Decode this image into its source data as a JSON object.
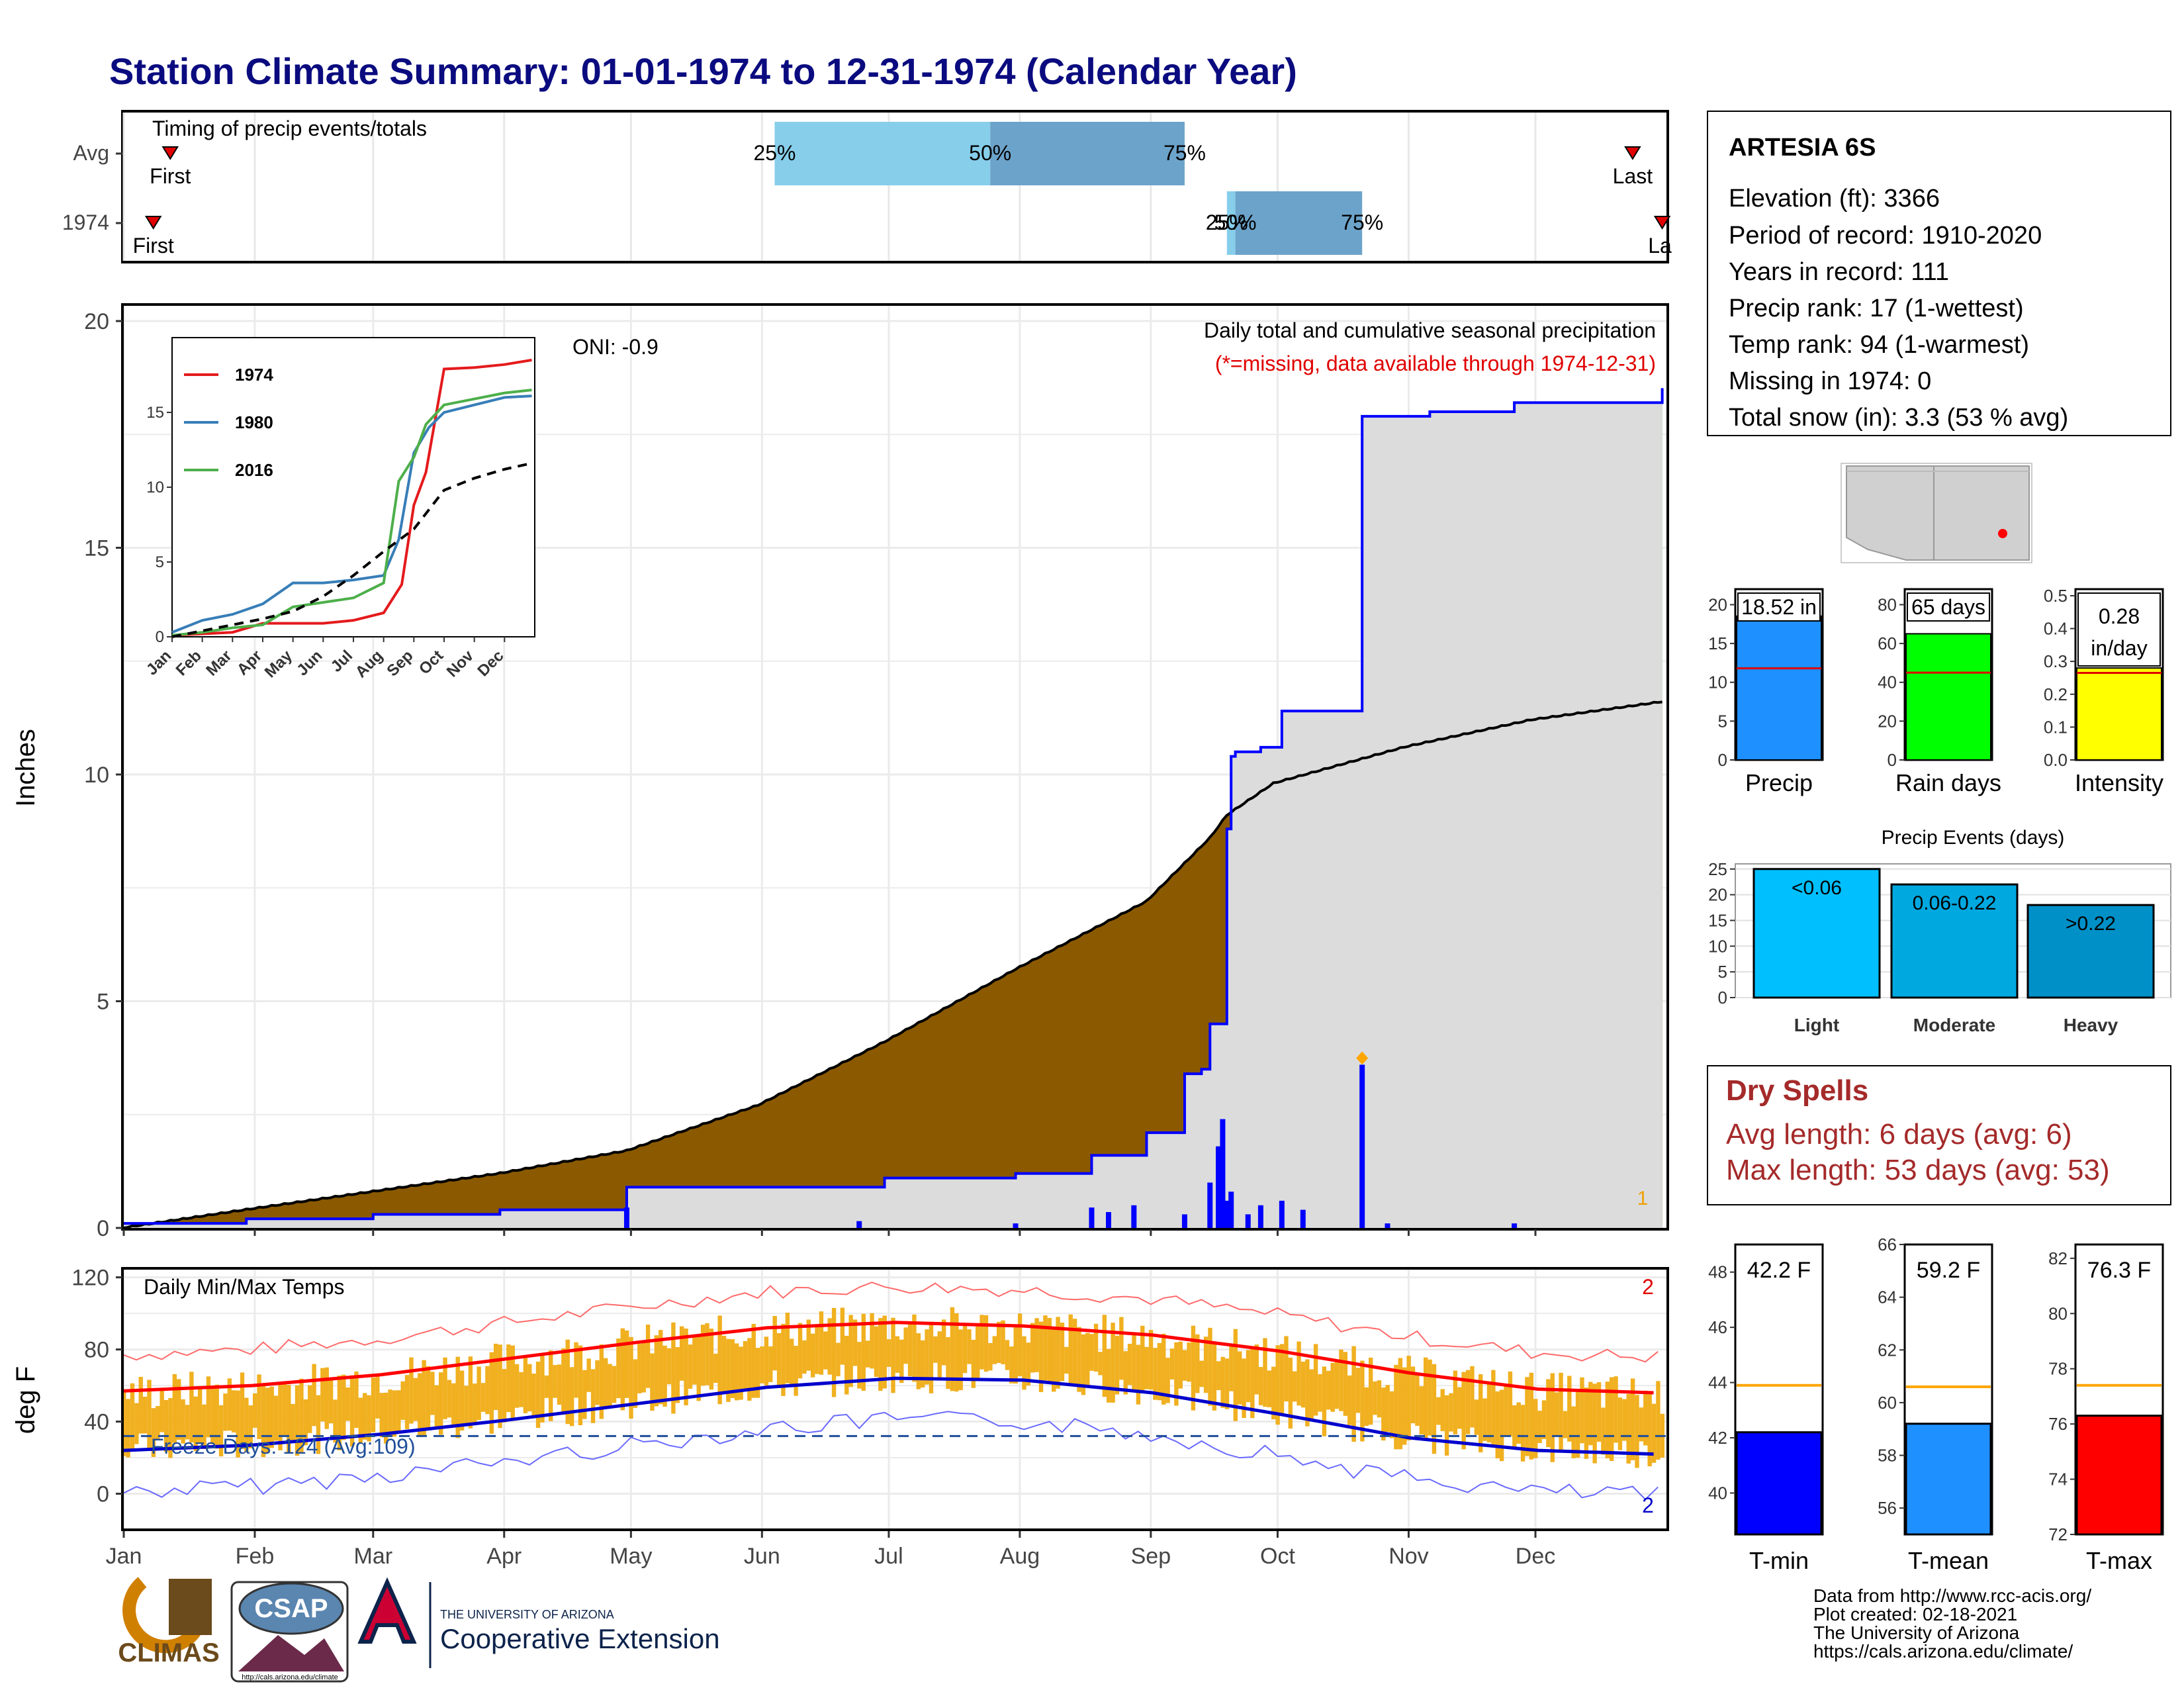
{
  "title": "Station Climate Summary: 01-01-1974 to 12-31-1974 (Calendar Year)",
  "colors": {
    "title": "#0b0b80",
    "cum_1974": "#8b5a00",
    "cum_avg_fill": "#dcdcdc",
    "excess": "#008000",
    "daily_bars": "#0000ff",
    "tmax_range": "#ffa500",
    "avg_tmax": "#ff0000",
    "avg_tmin": "#0000cd",
    "freeze_line": "#1f4e9a",
    "dry_spell_text": "#a52a2a"
  },
  "timing": {
    "title": "Timing of precip events/totals",
    "rows": [
      {
        "label": "Avg",
        "first_label": "First",
        "last_label": "Last",
        "first_day": 12,
        "last_day": 358,
        "p25_label": "25%",
        "p50_label": "50%",
        "p75_label": "75%",
        "p25": 155,
        "p50": 206,
        "p75": 252
      },
      {
        "label": "1974",
        "first_label": "First",
        "last_label": "La",
        "first_day": 8,
        "last_day": 365,
        "p25_label": "25%",
        "p50_label": "50%",
        "p75_label": "75%",
        "p25": 262,
        "p50": 264,
        "p75": 294
      }
    ]
  },
  "months": [
    "Jan",
    "Feb",
    "Mar",
    "Apr",
    "May",
    "Jun",
    "Jul",
    "Aug",
    "Sep",
    "Oct",
    "Nov",
    "Dec"
  ],
  "precip_panel": {
    "ylabel": "Inches",
    "yticks": [
      "0",
      "5",
      "10",
      "15",
      "20"
    ],
    "oni": "ONI: -0.9",
    "header": "Daily total and cumulative seasonal precipitation",
    "subheader": "(*=missing, data available through 1974-12-31)",
    "corner_label": "1"
  },
  "inset": {
    "yticks": [
      "0",
      "5",
      "10",
      "15"
    ],
    "months": [
      "Jan",
      "Feb",
      "Mar",
      "Apr",
      "May",
      "Jun",
      "Jul",
      "Aug",
      "Sep",
      "Oct",
      "Nov",
      "Dec"
    ],
    "legend": [
      "1974",
      "1980",
      "2016"
    ]
  },
  "temp_panel": {
    "ylabel": "deg F",
    "title": "Daily Min/Max Temps",
    "freeze": "Freeze Days: 124 (Avg:109)",
    "yticks": [
      "0",
      "40",
      "80",
      "120"
    ],
    "count_high": "2",
    "count_low": "2"
  },
  "station": {
    "name": "ARTESIA 6S",
    "lines": [
      "Elevation (ft): 3366",
      "Period of record: 1910-2020",
      "Years in record: 111",
      "Precip rank: 17 (1-wettest)",
      "Temp rank: 94 (1-warmest)",
      "Missing in 1974: 0",
      "Total snow (in): 3.3 (53 % avg)"
    ]
  },
  "summary_bars": [
    {
      "label": "Precip",
      "value_label": "18.52 in",
      "value": 18.52,
      "avg": 11.8,
      "ymax": 22,
      "ticks": [
        "0",
        "5",
        "10",
        "15",
        "20"
      ],
      "color": "#1e90ff"
    },
    {
      "label": "Rain days",
      "value_label": "65 days",
      "value": 65,
      "avg": 45,
      "ymax": 88,
      "ticks": [
        "0",
        "20",
        "40",
        "60",
        "80"
      ],
      "color": "#00ff00"
    },
    {
      "label": "Intensity",
      "value_label_1": "0.28",
      "value_label_2": "in/day",
      "value": 0.28,
      "avg": 0.265,
      "ymax": 0.52,
      "ticks": [
        "0.0",
        "0.1",
        "0.2",
        "0.3",
        "0.4",
        "0.5"
      ],
      "color": "#ffff00"
    }
  ],
  "precip_events": {
    "title": "Precip Events (days)",
    "ticks": [
      "0",
      "5",
      "10",
      "15",
      "20",
      "25"
    ],
    "ymax": 26,
    "bars": [
      {
        "label": "Light",
        "bin": "<0.06",
        "value": 25,
        "color": "#00bfff"
      },
      {
        "label": "Moderate",
        "bin": "0.06-0.22",
        "value": 22,
        "color": "#00a8e0"
      },
      {
        "label": "Heavy",
        "bin": ">0.22",
        "value": 18,
        "color": "#0090c8"
      }
    ]
  },
  "dry_spells": {
    "title": "Dry Spells",
    "avg": "Avg length: 6 days (avg: 6)",
    "max": "Max length: 53 days (avg: 53)"
  },
  "temp_bars": [
    {
      "label": "T-min",
      "value_label": "42.2 F",
      "value": 42.2,
      "avg": 43.9,
      "ymin": 38.5,
      "ymax": 49,
      "ticks": [
        "40",
        "42",
        "44",
        "46",
        "48"
      ],
      "color": "#0000ff"
    },
    {
      "label": "T-mean",
      "value_label": "59.2 F",
      "value": 59.2,
      "avg": 60.6,
      "ymin": 55,
      "ymax": 66,
      "ticks": [
        "56",
        "58",
        "60",
        "62",
        "64",
        "66"
      ],
      "color": "#1e90ff"
    },
    {
      "label": "T-max",
      "value_label": "76.3 F",
      "value": 76.3,
      "avg": 77.4,
      "ymin": 72,
      "ymax": 82.5,
      "ticks": [
        "72",
        "74",
        "76",
        "78",
        "80",
        "82"
      ],
      "color": "#ff0000"
    }
  ],
  "footer": {
    "lines": [
      "Data from http://www.rcc-acis.org/",
      "Plot created: 02-18-2021",
      "The University of Arizona",
      "https://cals.arizona.edu/climate/"
    ],
    "logo1": "CLIMAS",
    "logo2": "CSAP",
    "logo2_url": "http://cals.arizona.edu/climate",
    "logo3_top": "THE UNIVERSITY OF ARIZONA",
    "logo3_main": "Cooperative Extension"
  },
  "chart_data": [
    {
      "type": "area",
      "title": "Daily total and cumulative seasonal precipitation",
      "ylabel": "Inches",
      "ylim": [
        0,
        20
      ],
      "x_unit": "day of year",
      "series": [
        {
          "name": "1974",
          "x": [
            1,
            30,
            60,
            90,
            120,
            151,
            170,
            181,
            200,
            212,
            230,
            243,
            252,
            256,
            258,
            262,
            263,
            264,
            270,
            275,
            290,
            294,
            296,
            310,
            330,
            365
          ],
          "values": [
            0.1,
            0.2,
            0.3,
            0.4,
            0.9,
            0.9,
            0.9,
            1.1,
            1.1,
            1.2,
            1.6,
            2.1,
            3.4,
            3.5,
            4.5,
            8.8,
            10.4,
            10.5,
            10.6,
            11.4,
            11.4,
            17.9,
            17.9,
            18.0,
            18.2,
            18.52
          ]
        },
        {
          "x": [
            1,
            30,
            60,
            90,
            120,
            151,
            181,
            212,
            243,
            258,
            262,
            273,
            304,
            334,
            365
          ],
          "values": [
            0.0,
            0.4,
            0.8,
            1.2,
            1.7,
            2.7,
            4.1,
            5.7,
            7.2,
            8.6,
            9.1,
            9.8,
            10.6,
            11.2,
            11.6
          ]
        }
      ],
      "daily_precip": [
        {
          "day": 120,
          "value": 0.45
        },
        {
          "day": 175,
          "value": 0.15
        },
        {
          "day": 212,
          "value": 0.1
        },
        {
          "day": 230,
          "value": 0.45
        },
        {
          "day": 234,
          "value": 0.35
        },
        {
          "day": 240,
          "value": 0.5
        },
        {
          "day": 252,
          "value": 0.3
        },
        {
          "day": 258,
          "value": 1.0
        },
        {
          "day": 260,
          "value": 1.8
        },
        {
          "day": 261,
          "value": 2.4
        },
        {
          "day": 262,
          "value": 0.6
        },
        {
          "day": 263,
          "value": 0.8
        },
        {
          "day": 267,
          "value": 0.3
        },
        {
          "day": 270,
          "value": 0.5
        },
        {
          "day": 275,
          "value": 0.6
        },
        {
          "day": 280,
          "value": 0.4
        },
        {
          "day": 294,
          "value": 3.6
        },
        {
          "day": 300,
          "value": 0.1
        },
        {
          "day": 330,
          "value": 0.1
        }
      ]
    },
    {
      "type": "line",
      "title": "",
      "x_unit": "month",
      "ylim": [
        0,
        20
      ],
      "series": [
        {
          "name": "1974",
          "x": [
            1,
            2,
            3,
            4,
            5,
            6,
            7,
            8,
            8.6,
            9,
            9.4,
            10,
            11,
            12,
            12.9
          ],
          "values": [
            0.1,
            0.2,
            0.3,
            0.9,
            0.9,
            0.9,
            1.1,
            1.6,
            3.5,
            8.8,
            11.0,
            17.9,
            18.0,
            18.2,
            18.5
          ]
        },
        {
          "name": "1980",
          "x": [
            1,
            2,
            3,
            4,
            5,
            6,
            7,
            8,
            8.5,
            9,
            9.5,
            10,
            11,
            12,
            12.9
          ],
          "values": [
            0.3,
            1.1,
            1.5,
            2.2,
            3.6,
            3.6,
            3.8,
            4.1,
            6.5,
            12.3,
            14.0,
            15.0,
            15.5,
            16.0,
            16.1
          ]
        },
        {
          "name": "2016",
          "x": [
            1,
            2,
            3,
            4,
            5,
            6,
            7,
            8,
            8.5,
            9,
            9.4,
            10,
            11,
            12,
            12.9
          ],
          "values": [
            0.1,
            0.3,
            0.6,
            0.8,
            2.0,
            2.3,
            2.6,
            3.6,
            10.4,
            12.0,
            14.2,
            15.5,
            15.9,
            16.3,
            16.5
          ]
        },
        {
          "x": [
            1,
            2,
            3,
            4,
            5,
            6,
            7,
            8,
            9,
            10,
            11,
            12,
            12.9
          ],
          "values": [
            0.0,
            0.4,
            0.8,
            1.2,
            1.7,
            2.7,
            4.1,
            5.7,
            7.2,
            9.8,
            10.6,
            11.2,
            11.6
          ]
        }
      ]
    },
    {
      "type": "line",
      "title": "Daily Min/Max Temps",
      "ylabel": "deg F",
      "ylim": [
        -20,
        125
      ],
      "x_unit": "month",
      "series": [
        {
          "x": [
            1,
            2,
            3,
            4,
            5,
            6,
            7,
            8,
            9,
            10,
            11,
            12,
            12.9
          ],
          "values": [
            57,
            60,
            66,
            75,
            84,
            92,
            95,
            93,
            88,
            79,
            67,
            58,
            56
          ]
        },
        {
          "x": [
            1,
            2,
            3,
            4,
            5,
            6,
            7,
            8,
            9,
            10,
            11,
            12,
            12.9
          ],
          "values": [
            24,
            27,
            33,
            41,
            50,
            59,
            64,
            63,
            56,
            44,
            31,
            24,
            22
          ]
        }
      ],
      "freeze_line": 32
    },
    {
      "type": "bar",
      "title": "Precip Events (days)",
      "categories": [
        "Light",
        "Moderate",
        "Heavy"
      ],
      "values": [
        25,
        22,
        18
      ],
      "ylim": [
        0,
        26
      ]
    }
  ]
}
